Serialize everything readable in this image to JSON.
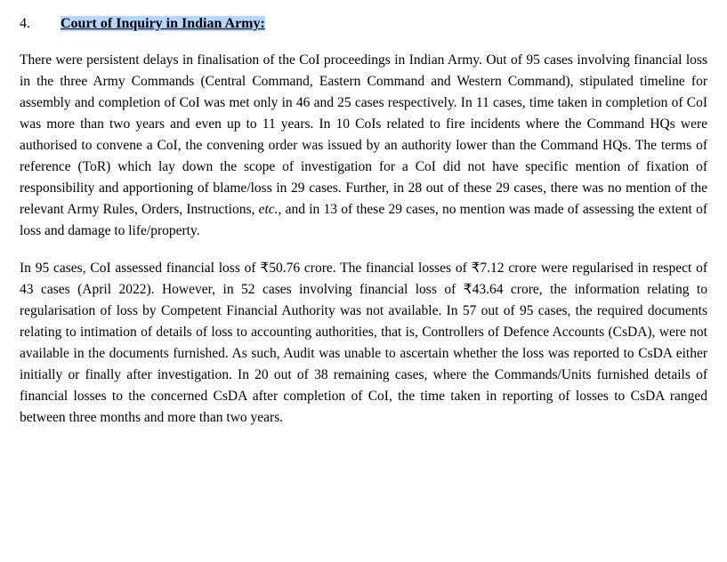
{
  "section": {
    "number": "4.",
    "title": "Court of Inquiry in Indian Army:"
  },
  "paragraphs": {
    "p1_part1": "There were persistent delays in finalisation of the CoI proceedings in Indian Army. Out of 95 cases involving financial loss in the three Army Commands (Central Command, Eastern Command and Western Command), stipulated timeline for assembly and completion of CoI was met only in 46 and 25 cases respectively. In 11 cases, time taken in completion of CoI was more than two years and even up to 11 years. In 10 CoIs related to fire incidents where the Command HQs were authorised to convene a CoI, the convening order was issued by an authority lower than the Command HQs. The terms of reference (ToR) which lay down the scope of investigation for a CoI did not have specific mention of fixation of responsibility and apportioning of blame/loss in 29 cases. Further, in 28 out of these 29 cases, there was no mention of the relevant Army Rules, Orders, Instructions, ",
    "p1_italic": "etc.,",
    "p1_part2": " and in 13 of these 29 cases, no mention was made of assessing the extent of loss and damage to life/property.",
    "p2": "In 95 cases, CoI assessed financial loss of ₹50.76 crore.  The financial losses of ₹7.12 crore were regularised in respect of 43 cases (April 2022). However, in 52 cases involving financial loss of ₹43.64 crore, the information relating to regularisation of loss by Competent Financial Authority was not available. In 57 out of 95 cases, the required documents relating to intimation of details of loss to accounting authorities, that is, Controllers of Defence Accounts (CsDA), were not available in the documents furnished. As such, Audit was unable to ascertain whether the loss was reported to CsDA either initially or finally after investigation. In 20 out of 38 remaining cases, where the Commands/Units furnished details of financial losses to the concerned CsDA after completion of CoI, the time taken in reporting of losses to CsDA ranged between three months and more than two years."
  },
  "colors": {
    "text": "#000000",
    "background": "#ffffff",
    "highlight": "#b3d7ff"
  },
  "typography": {
    "font_family": "Times New Roman",
    "body_fontsize": 15.5,
    "header_fontsize": 16,
    "line_height": 1.55
  }
}
